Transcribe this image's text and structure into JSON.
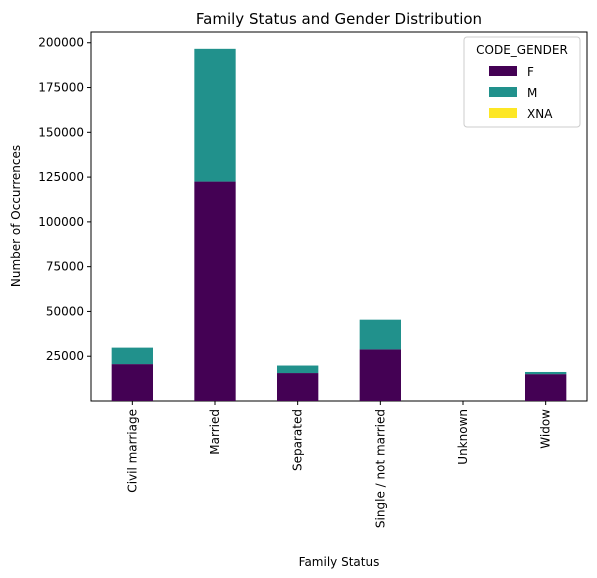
{
  "chart_data": {
    "type": "bar",
    "stacked": true,
    "title": "Family Status and Gender Distribution",
    "xlabel": "Family Status",
    "ylabel": "Number of Occurrences",
    "categories": [
      "Civil marriage",
      "Married",
      "Separated",
      "Single / not married",
      "Unknown",
      "Widow"
    ],
    "series": [
      {
        "name": "F",
        "color": "#440154",
        "values": [
          20600,
          122500,
          15600,
          28800,
          2,
          15000
        ]
      },
      {
        "name": "M",
        "color": "#21918c",
        "values": [
          9200,
          74100,
          4200,
          16600,
          0,
          1200
        ]
      },
      {
        "name": "XNA",
        "color": "#fde725",
        "values": [
          0,
          4,
          0,
          0,
          0,
          0
        ]
      }
    ],
    "ylim": [
      0,
      206000
    ],
    "yticks": [
      25000,
      50000,
      75000,
      100000,
      125000,
      150000,
      175000,
      200000
    ],
    "legend_title": "CODE_GENDER",
    "legend_position": "top-right",
    "grid": false
  }
}
